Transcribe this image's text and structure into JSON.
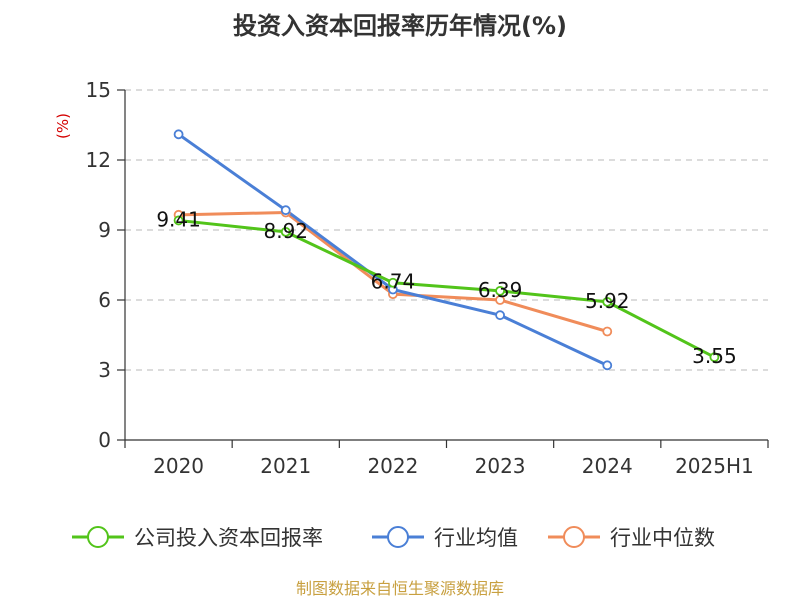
{
  "chart_data": {
    "type": "line",
    "title": "投资入资本回报率历年情况(%)",
    "ylabel": "(%)",
    "categories": [
      "2020",
      "2021",
      "2022",
      "2023",
      "2024",
      "2025H1"
    ],
    "ylim": [
      0,
      15
    ],
    "yticks": [
      0,
      3,
      6,
      9,
      12,
      15
    ],
    "grid": true,
    "legend_position": "bottom",
    "series": [
      {
        "name": "公司投入资本回报率",
        "color": "#52c41a",
        "values": [
          9.41,
          8.92,
          6.74,
          6.39,
          5.92,
          3.55
        ],
        "show_labels": true
      },
      {
        "name": "行业均值",
        "color": "#4a7fd6",
        "values": [
          13.1,
          9.85,
          6.45,
          5.35,
          3.2,
          null
        ],
        "show_labels": false
      },
      {
        "name": "行业中位数",
        "color": "#f08c5a",
        "values": [
          9.65,
          9.75,
          6.25,
          6.0,
          4.65,
          null
        ],
        "show_labels": false
      }
    ]
  },
  "source": "制图数据来自恒生聚源数据库"
}
